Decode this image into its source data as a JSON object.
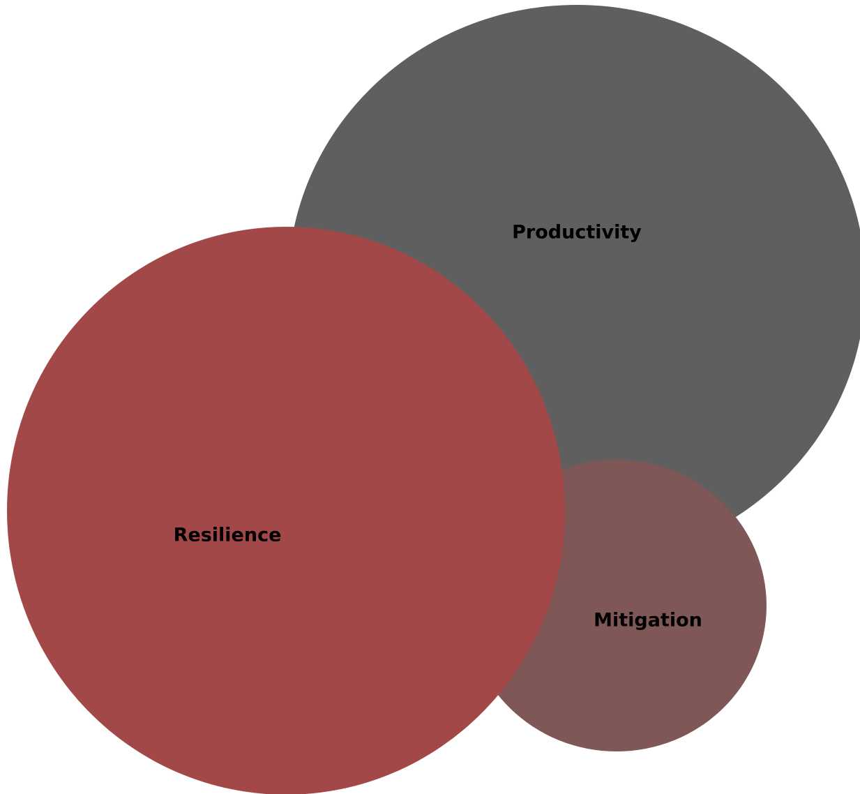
{
  "diagram": {
    "circles": [
      {
        "id": "productivity",
        "label": "Productivity",
        "color": "#5f5f5f"
      },
      {
        "id": "mitigation",
        "label": "Mitigation",
        "color": "#7f5757"
      },
      {
        "id": "resilience",
        "label": "Resilience",
        "color": "#a34848"
      }
    ]
  }
}
